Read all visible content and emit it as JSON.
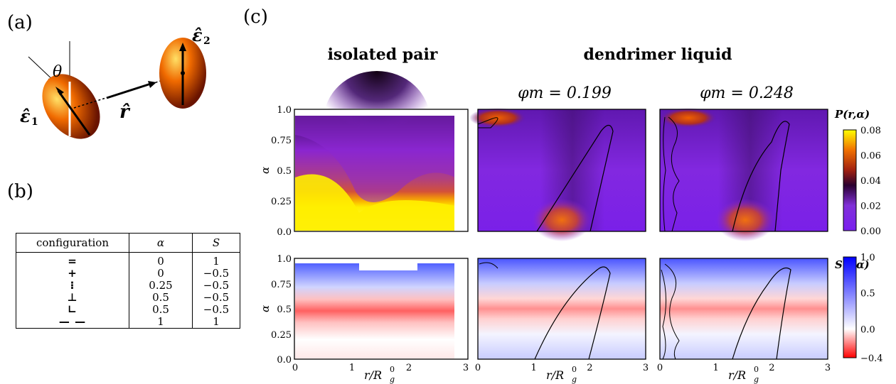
{
  "panel_labels": {
    "a": "(a)",
    "b": "(b)",
    "c": "(c)"
  },
  "diagram": {
    "theta": "θ",
    "eps1": "ε̂",
    "eps1_sub": "1",
    "eps2": "ε̂",
    "eps2_sub": "2",
    "rhat": "r̂"
  },
  "table": {
    "headers": [
      "configuration",
      "α",
      "S"
    ],
    "rows": [
      {
        "config": "=",
        "alpha": "0",
        "S": "1"
      },
      {
        "config": "+",
        "alpha": "0",
        "S": "−0.5"
      },
      {
        "config": "⁝",
        "alpha": "0.25",
        "S": "−0.5"
      },
      {
        "config": "⊥",
        "alpha": "0.5",
        "S": "−0.5"
      },
      {
        "config": "∟",
        "alpha": "0.5",
        "S": "−0.5"
      },
      {
        "config": "— —",
        "alpha": "1",
        "S": "1"
      }
    ]
  },
  "headings": {
    "isolated": "isolated pair",
    "liquid": "dendrimer liquid",
    "phi1": "φm = 0.199",
    "phi2": "φm = 0.248"
  },
  "axes": {
    "ylabel": "α",
    "xlabel": "r/R",
    "xlabel_sup": "0",
    "xlabel_sub": "g",
    "yticks": [
      "0.0",
      "0.25",
      "0.5",
      "0.75",
      "1.0"
    ],
    "xticks": [
      "0",
      "1",
      "2",
      "3"
    ]
  },
  "colorbars": {
    "P": {
      "title": "P(r,α)",
      "ticks": [
        "0.00",
        "0.02",
        "0.04",
        "0.06",
        "0.08"
      ],
      "range": [
        0,
        0.08
      ]
    },
    "S": {
      "title": "S(r,α)",
      "ticks": [
        "−0.4",
        "0.0",
        "0.5",
        "1.0"
      ],
      "range": [
        -0.4,
        1.0
      ]
    }
  },
  "colors": {
    "hot_top": "#ffff00",
    "hot_mid": "#e05010",
    "hot_dark": "#140010",
    "purple": "#8a2be2",
    "blue": "#0000ff",
    "red": "#ff0000"
  }
}
